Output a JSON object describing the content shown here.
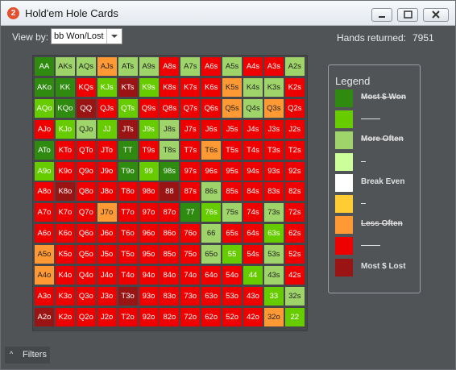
{
  "window": {
    "title": "Hold'em Hole Cards",
    "icon_glyph": "2",
    "buttons": [
      "minimize-icon",
      "maximize-icon",
      "close-icon"
    ]
  },
  "toolbar": {
    "view_by_label": "View by:",
    "view_by_value": "bb Won/Lost",
    "hands_returned_label": "Hands returned:",
    "hands_returned_value": "7951"
  },
  "colors": {
    "dg": "#2e8b10",
    "lg": "#66cc00",
    "pg": "#9ed46a",
    "yl": "#ffcc33",
    "or": "#ff9933",
    "rd": "#ee0000",
    "dr": "#9b1414",
    "light_text": "#ffffff",
    "dark_text": "#222222"
  },
  "grid": {
    "rows": [
      [
        "AA",
        "AKs",
        "AQs",
        "AJs",
        "ATs",
        "A9s",
        "A8s",
        "A7s",
        "A6s",
        "A5s",
        "A4s",
        "A3s",
        "A2s"
      ],
      [
        "AKo",
        "KK",
        "KQs",
        "KJs",
        "KTs",
        "K9s",
        "K8s",
        "K7s",
        "K6s",
        "K5s",
        "K4s",
        "K3s",
        "K2s"
      ],
      [
        "AQo",
        "KQo",
        "QQ",
        "QJs",
        "QTs",
        "Q9s",
        "Q8s",
        "Q7s",
        "Q6s",
        "Q5s",
        "Q4s",
        "Q3s",
        "Q2s"
      ],
      [
        "AJo",
        "KJo",
        "QJo",
        "JJ",
        "JTs",
        "J9s",
        "J8s",
        "J7s",
        "J6s",
        "J5s",
        "J4s",
        "J3s",
        "J2s"
      ],
      [
        "ATo",
        "KTo",
        "QTo",
        "JTo",
        "TT",
        "T9s",
        "T8s",
        "T7s",
        "T6s",
        "T5s",
        "T4s",
        "T3s",
        "T2s"
      ],
      [
        "A9o",
        "K9o",
        "Q9o",
        "J9o",
        "T9o",
        "99",
        "98s",
        "97s",
        "96s",
        "95s",
        "94s",
        "93s",
        "92s"
      ],
      [
        "A8o",
        "K8o",
        "Q8o",
        "J8o",
        "T8o",
        "98o",
        "88",
        "87s",
        "86s",
        "85s",
        "84s",
        "83s",
        "82s"
      ],
      [
        "A7o",
        "K7o",
        "Q7o",
        "J7o",
        "T7o",
        "97o",
        "87o",
        "77",
        "76s",
        "75s",
        "74s",
        "73s",
        "72s"
      ],
      [
        "A6o",
        "K6o",
        "Q6o",
        "J6o",
        "T6o",
        "96o",
        "86o",
        "76o",
        "66",
        "65s",
        "64s",
        "63s",
        "62s"
      ],
      [
        "A5o",
        "K5o",
        "Q5o",
        "J5o",
        "T5o",
        "95o",
        "85o",
        "75o",
        "65o",
        "55",
        "54s",
        "53s",
        "52s"
      ],
      [
        "A4o",
        "K4o",
        "Q4o",
        "J4o",
        "T4o",
        "94o",
        "84o",
        "74o",
        "64o",
        "54o",
        "44",
        "43s",
        "42s"
      ],
      [
        "A3o",
        "K3o",
        "Q3o",
        "J3o",
        "T3o",
        "93o",
        "83o",
        "73o",
        "63o",
        "53o",
        "43o",
        "33",
        "32s"
      ],
      [
        "A2o",
        "K2o",
        "Q2o",
        "J2o",
        "T2o",
        "92o",
        "82o",
        "72o",
        "62o",
        "52o",
        "42o",
        "32o",
        "22"
      ]
    ],
    "cell_colors": [
      [
        "dg",
        "pg",
        "pg",
        "or",
        "pg",
        "pg",
        "rd",
        "pg",
        "rd",
        "pg",
        "rd",
        "rd",
        "pg"
      ],
      [
        "dg",
        "dg",
        "rd",
        "lg",
        "dr",
        "lg",
        "rd",
        "rd",
        "rd",
        "or",
        "pg",
        "pg",
        "rd"
      ],
      [
        "lg",
        "dg",
        "dr",
        "rd",
        "lg",
        "rd",
        "rd",
        "rd",
        "rd",
        "or",
        "pg",
        "or",
        "rd"
      ],
      [
        "rd",
        "lg",
        "pg",
        "lg",
        "dr",
        "lg",
        "pg",
        "rd",
        "rd",
        "rd",
        "rd",
        "rd",
        "rd"
      ],
      [
        "dg",
        "rd",
        "rd",
        "rd",
        "dg",
        "rd",
        "pg",
        "rd",
        "or",
        "rd",
        "rd",
        "rd",
        "rd"
      ],
      [
        "lg",
        "rd",
        "rd",
        "rd",
        "dg",
        "lg",
        "dg",
        "rd",
        "rd",
        "rd",
        "rd",
        "rd",
        "rd"
      ],
      [
        "rd",
        "dr",
        "rd",
        "rd",
        "rd",
        "rd",
        "dr",
        "rd",
        "pg",
        "rd",
        "rd",
        "rd",
        "rd"
      ],
      [
        "rd",
        "rd",
        "rd",
        "or",
        "rd",
        "rd",
        "rd",
        "dg",
        "lg",
        "pg",
        "rd",
        "pg",
        "rd"
      ],
      [
        "rd",
        "rd",
        "rd",
        "rd",
        "rd",
        "rd",
        "rd",
        "rd",
        "pg",
        "rd",
        "rd",
        "lg",
        "rd"
      ],
      [
        "or",
        "rd",
        "rd",
        "rd",
        "rd",
        "rd",
        "rd",
        "rd",
        "pg",
        "lg",
        "rd",
        "pg",
        "rd"
      ],
      [
        "or",
        "rd",
        "rd",
        "rd",
        "rd",
        "rd",
        "rd",
        "rd",
        "rd",
        "rd",
        "lg",
        "pg",
        "rd"
      ],
      [
        "rd",
        "rd",
        "rd",
        "rd",
        "dr",
        "rd",
        "rd",
        "rd",
        "rd",
        "rd",
        "rd",
        "lg",
        "pg"
      ],
      [
        "dr",
        "rd",
        "rd",
        "rd",
        "rd",
        "rd",
        "rd",
        "rd",
        "rd",
        "rd",
        "rd",
        "or",
        "lg"
      ]
    ]
  },
  "legend": {
    "title": "Legend",
    "items": [
      {
        "color_key": "dg",
        "label": "Most $ Won",
        "strike": true
      },
      {
        "color_key": "lg",
        "label": "",
        "strike": false
      },
      {
        "color_key": "pg",
        "label": "More Often",
        "strike": true
      },
      {
        "color_key": "pl",
        "label": "",
        "strike": false
      },
      {
        "color_key": "wh",
        "label": "Break Even",
        "strike": false
      },
      {
        "color_key": "yl",
        "label": "",
        "strike": false
      },
      {
        "color_key": "or",
        "label": "Less Often",
        "strike": true
      },
      {
        "color_key": "rd",
        "label": "",
        "strike": false
      },
      {
        "color_key": "dr",
        "label": "Most $ Lost",
        "strike": false
      }
    ],
    "extra_colors": {
      "pl": "#ccff99",
      "wh": "#ffffff"
    }
  },
  "footer": {
    "filters_label": "Filters",
    "chevron_glyph": "^"
  }
}
